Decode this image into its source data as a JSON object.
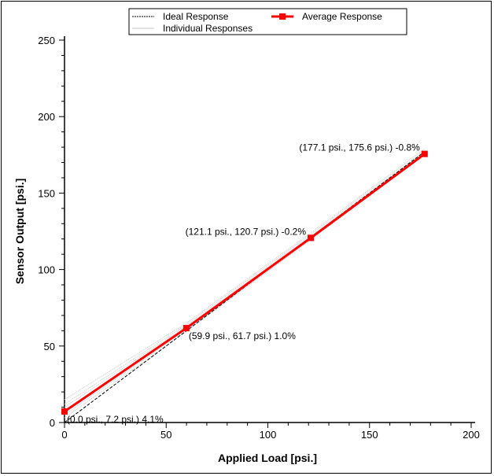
{
  "chart_data": {
    "type": "line",
    "title": "",
    "xlabel": "Applied Load [psi.]",
    "ylabel": "Sensor Output [psi.]",
    "xlim": [
      0,
      200
    ],
    "ylim": [
      0,
      250
    ],
    "xticks": [
      "0",
      "50",
      "100",
      "150",
      "200"
    ],
    "yticks": [
      "0",
      "50",
      "100",
      "150",
      "200",
      "250"
    ],
    "grid": false,
    "legend_position": "top-center",
    "legend": [
      "Ideal Response",
      "Average Response",
      "Individual Responses"
    ],
    "series": [
      {
        "name": "Ideal Response",
        "x": [
          0,
          177.1
        ],
        "y": [
          0,
          177.1
        ],
        "color": "#000000",
        "style": "dashed"
      },
      {
        "name": "Average Response",
        "x": [
          0.0,
          59.9,
          121.1,
          177.1
        ],
        "y": [
          7.2,
          61.7,
          120.7,
          175.6
        ],
        "color": "#ff0000",
        "style": "solid-square-markers"
      },
      {
        "name": "Individual Responses",
        "color": "#c8c8c8",
        "style": "dotted",
        "lines": [
          {
            "x": [
              0,
              59.9,
              121.1,
              177.1
            ],
            "y": [
              3,
              59.5,
              119.5,
              175
            ]
          },
          {
            "x": [
              0,
              59.9,
              121.1,
              177.1
            ],
            "y": [
              5,
              60.5,
              120,
              175.2
            ]
          },
          {
            "x": [
              0,
              59.9,
              121.1,
              177.1
            ],
            "y": [
              8,
              62,
              121,
              176
            ]
          },
          {
            "x": [
              0,
              59.9,
              121.1,
              177.1
            ],
            "y": [
              10,
              63,
              122,
              177
            ]
          },
          {
            "x": [
              0,
              59.9,
              121.1,
              177.1
            ],
            "y": [
              12,
              64,
              123,
              178
            ]
          },
          {
            "x": [
              0,
              59.9,
              121.1,
              177.1
            ],
            "y": [
              15,
              65,
              124,
              179
            ]
          }
        ]
      }
    ],
    "annotations": [
      {
        "text": "(0.0 psi., 7.2 psi.) 4.1%",
        "x": 0.0,
        "y": 7.2
      },
      {
        "text": "(59.9 psi., 61.7 psi.) 1.0%",
        "x": 59.9,
        "y": 61.7
      },
      {
        "text": "(121.1 psi., 120.7 psi.) -0.2%",
        "x": 121.1,
        "y": 120.7
      },
      {
        "text": "(177.1 psi., 175.6 psi.) -0.8%",
        "x": 177.1,
        "y": 175.6
      }
    ]
  }
}
